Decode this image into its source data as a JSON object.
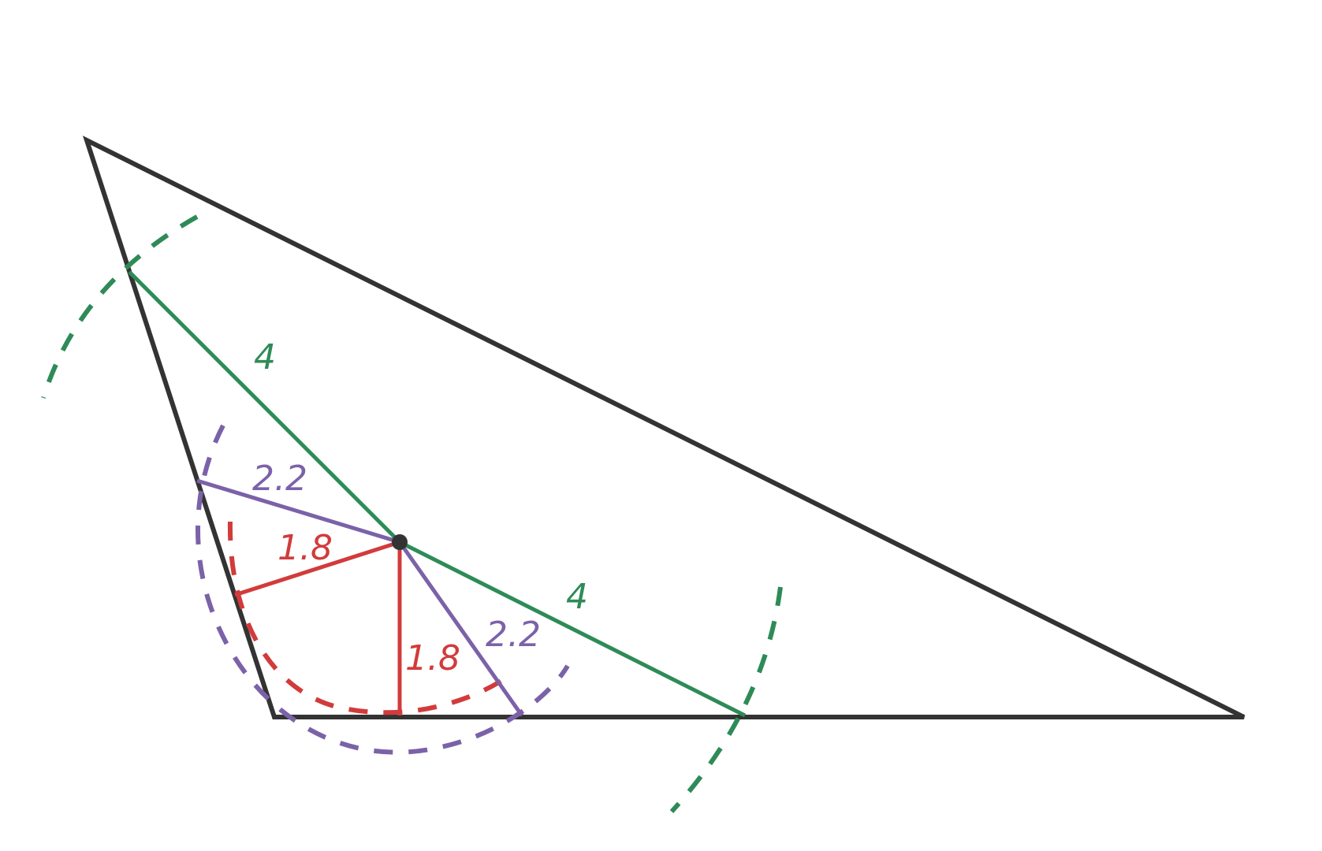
{
  "colors": {
    "triangle": "#333333",
    "green": "#2e8b57",
    "purple": "#7b62a8",
    "red": "#d23b3b",
    "point": "#333333"
  },
  "labels": {
    "green_upper": "4",
    "green_lower": "4",
    "purple_left": "2.2",
    "purple_right": "2.2",
    "red_left": "1.8",
    "red_down": "1.8"
  }
}
